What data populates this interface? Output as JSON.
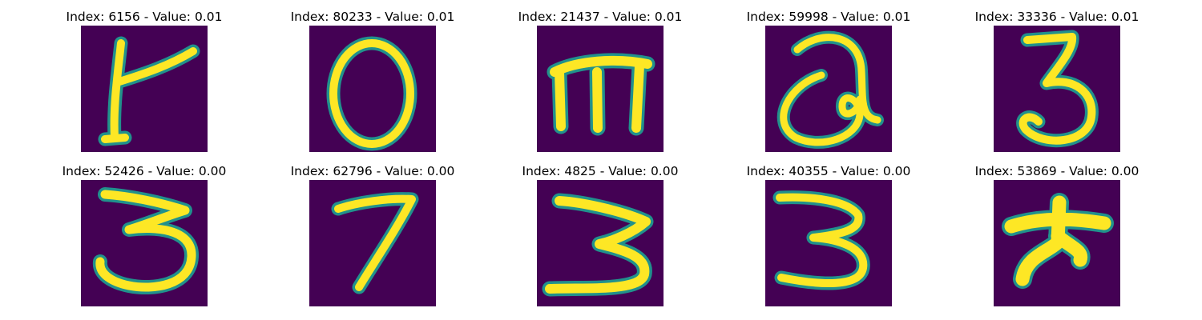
{
  "panels": [
    {
      "title": "Index: 6156 - Value: 0.01",
      "glyph": "crossed-l",
      "shape": "yellow-stroke-glyph"
    },
    {
      "title": "Index: 80233 - Value: 0.01",
      "glyph": "O",
      "shape": "yellow-stroke-glyph"
    },
    {
      "title": "Index: 21437 - Value: 0.01",
      "glyph": "m",
      "shape": "yellow-stroke-glyph"
    },
    {
      "title": "Index: 59998 - Value: 0.01",
      "glyph": "a",
      "shape": "yellow-stroke-glyph"
    },
    {
      "title": "Index: 33336 - Value: 0.01",
      "glyph": "3",
      "shape": "yellow-stroke-glyph"
    },
    {
      "title": "Index: 52426 - Value: 0.00",
      "glyph": "3",
      "shape": "yellow-stroke-glyph"
    },
    {
      "title": "Index: 62796 - Value: 0.00",
      "glyph": "7",
      "shape": "yellow-stroke-glyph"
    },
    {
      "title": "Index: 4825 - Value: 0.00",
      "glyph": "3",
      "shape": "yellow-stroke-glyph"
    },
    {
      "title": "Index: 40355 - Value: 0.00",
      "glyph": "3",
      "shape": "yellow-stroke-glyph"
    },
    {
      "title": "Index: 53869 - Value: 0.00",
      "glyph": "star",
      "shape": "yellow-stroke-glyph"
    }
  ],
  "colors": {
    "background": "#440154",
    "mid": "#21918c",
    "stroke": "#fde725",
    "figure": "#ffffff"
  }
}
